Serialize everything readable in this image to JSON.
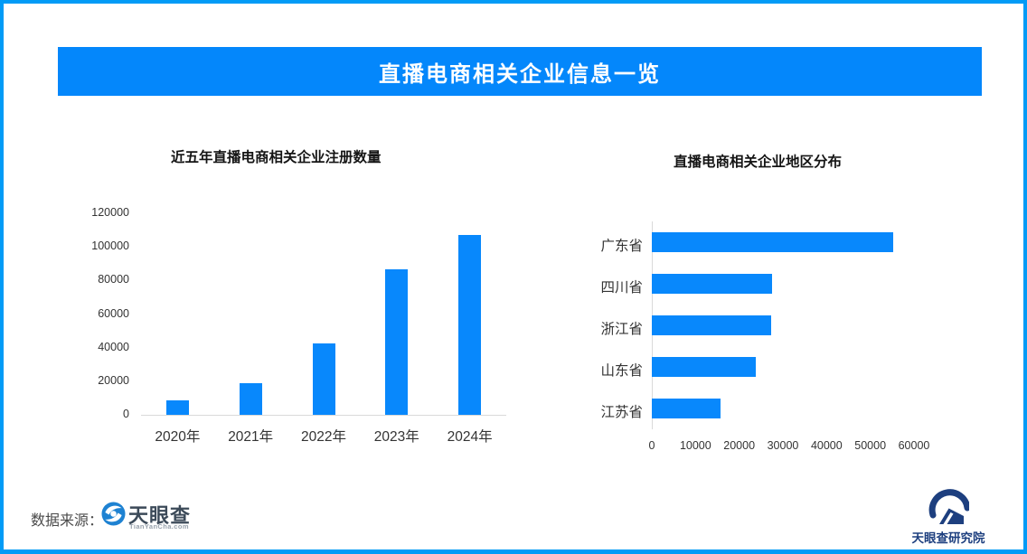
{
  "banner": {
    "title": "直播电商相关企业信息一览"
  },
  "footer": {
    "source_label": "数据来源：",
    "tianyancha": {
      "name": "天眼查",
      "domain": "TianYanCha.com"
    },
    "research_institute": "天眼查研究院"
  },
  "colors": {
    "accent_blue": "#0487fb",
    "border_blue": "#029bf6",
    "bar_blue": "#0888fc",
    "axis_gray": "#d9d9d9",
    "tyc_icon_blue": "#1e82d2",
    "research_navy": "#1d3f7f"
  },
  "chart_data": [
    {
      "type": "bar",
      "title": "近五年直播电商相关企业注册数量",
      "categories": [
        "2020年",
        "2021年",
        "2022年",
        "2023年",
        "2024年"
      ],
      "values": [
        8500,
        19000,
        42500,
        86500,
        107000
      ],
      "xlabel": "",
      "ylabel": "",
      "ylim": [
        0,
        120000
      ],
      "yticks": [
        0,
        20000,
        40000,
        60000,
        80000,
        100000,
        120000
      ],
      "grid": false,
      "legend": "none",
      "bar_color": "#0888fc"
    },
    {
      "type": "bar-horizontal",
      "title": "直播电商相关企业地区分布",
      "categories": [
        "广东省",
        "四川省",
        "浙江省",
        "山东省",
        "江苏省"
      ],
      "values": [
        55200,
        27600,
        27400,
        23800,
        15700
      ],
      "xlabel": "",
      "ylabel": "",
      "xlim": [
        0,
        60000
      ],
      "xticks": [
        0,
        10000,
        20000,
        30000,
        40000,
        50000,
        60000
      ],
      "grid": false,
      "legend": "none",
      "bar_color": "#0888fc"
    }
  ]
}
